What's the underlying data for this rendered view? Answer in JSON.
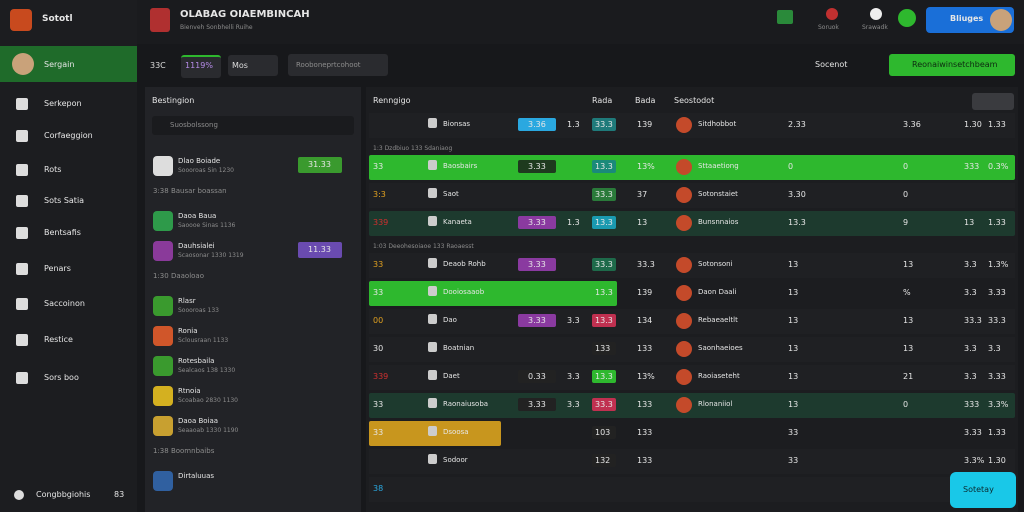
{
  "app": {
    "name": "Sototl",
    "user": "Sergain",
    "footer_label": "Congbbgiohis",
    "footer_badge": "83"
  },
  "menu": [
    "Serkepon",
    "Corfaeggion",
    "Rots",
    "Sots Satia",
    "Bentsafis",
    "Penars",
    "Saccoinon",
    "Restice",
    "Sors boo"
  ],
  "header": {
    "title": "OLABAG OIAEMBINCAH",
    "subtitle": "Bienveh Sonbhelli Ruihe",
    "actions": [
      "Soruok",
      "Srawadk"
    ],
    "account": "Bliuges"
  },
  "filters": {
    "tabs": [
      "33C",
      "1119%",
      "Mos"
    ],
    "search": "Rooboneprtcohoot",
    "right_search": "Socenot",
    "button": "Reonaiwinsetchbeam"
  },
  "left_panel": {
    "title": "Bestingion",
    "search": "Suosbolssong",
    "items": [
      {
        "name": "Dlao Boiade",
        "sub": "Soooroas Sin 1230",
        "value": "31.33",
        "value_color": "#3a9a2e",
        "icon": "#dddddd"
      },
      {
        "heading": "3:38 Bausar boassan"
      },
      {
        "name": "Daoa Baua",
        "sub": "Saoooe Sinas 1136",
        "icon": "#2e9a4a"
      },
      {
        "name": "Dauhsialei",
        "sub": "Scaosonar 1330 1319",
        "value": "11.33",
        "value_color": "#6a4bb0",
        "icon": "#8a3a9a"
      },
      {
        "heading": "1:30 Daaoloao"
      },
      {
        "name": "Rlasr",
        "sub": "Soooroas 133",
        "icon": "#3a9a2e"
      },
      {
        "name": "Ronia",
        "sub": "Sclousraan 1133",
        "icon": "#d0562a"
      },
      {
        "name": "Rotesbaila",
        "sub": "Sealcaos 138 1330",
        "icon": "#3a9a2e"
      },
      {
        "name": "Rtnoia",
        "sub": "Scoabao 2830 1130",
        "icon": "#d4b020"
      },
      {
        "name": "Daoa Boiaa",
        "sub": "Seaaoab 1330 1190",
        "icon": "#c8a030"
      },
      {
        "heading": "1:38 Boomnbaibs"
      },
      {
        "name": "Dirtaluuas",
        "sub": "",
        "icon": "#3060a0"
      }
    ]
  },
  "table": {
    "columns": [
      "Renngigo",
      "Rada",
      "Bada",
      "Seostodot"
    ],
    "rows": [
      {
        "lead": "",
        "team": "Bionsas",
        "odds": "3.36",
        "odds_color": "#2aa8e0",
        "mid": "1.3",
        "pct": "33.3",
        "pct_color": "#1f7a7a",
        "v1": "139",
        "team2": "Sitdhobbot",
        "v2": "2.33",
        "v3": "3.36",
        "v4": "1.30",
        "v5": "1.33"
      },
      {
        "sub": "1:3 Dzdbiuo 133 Sdaniaog"
      },
      {
        "lead": "33",
        "team": "Baosbairs",
        "odds": "3.33",
        "odds_color": "#1e3a1e",
        "mid": "",
        "pct": "13.3",
        "pct_color": "#1a8a7a",
        "v1": "13%",
        "team2": "Sttaaetiong",
        "v2": "0",
        "v3": "0",
        "v4": "333",
        "v5": "0.3%",
        "highlight": "#2eb82e",
        "span": "full"
      },
      {
        "lead": "3:3",
        "team": "Saot",
        "odds": "",
        "odds_color": "#222",
        "mid": "",
        "pct": "33.3",
        "pct_color": "#2a7a3a",
        "v1": "37",
        "team2": "Sotonstaiet",
        "v2": "3.30",
        "v3": "0",
        "v4": "",
        "v5": "",
        "lead_color": "#e0a020"
      },
      {
        "lead": "339",
        "team": "Kanaeta",
        "odds": "3.33",
        "odds_color": "#8a3aa0",
        "mid": "1.3",
        "pct": "13.3",
        "pct_color": "#1a9ab0",
        "v1": "13",
        "team2": "Bunsnnaios",
        "v2": "13.3",
        "v3": "9",
        "v4": "13",
        "v5": "1.33",
        "lead_color": "#d03030",
        "highlight": "#1d3a2e",
        "span": "full"
      },
      {
        "sub": "1:03 Deeohesoiaoe 133 Raoaesst"
      },
      {
        "lead": "33",
        "team": "Deaob Rohb",
        "odds": "3.33",
        "odds_color": "#8a3aa0",
        "mid": "",
        "pct": "33.3",
        "pct_color": "#1e6a4a",
        "v1": "33.3",
        "team2": "Sotonsoni",
        "v2": "13",
        "v3": "13",
        "v4": "3.3",
        "v5": "1.3%",
        "lead_color": "#e0a020"
      },
      {
        "lead": "33",
        "team": "Dooiosaaob",
        "odds": "",
        "odds_color": "#222",
        "mid": "",
        "pct": "13.3",
        "pct_color": "#2eb82e",
        "v1": "139",
        "team2": "Daon Daali",
        "v2": "13",
        "v3": "%",
        "v4": "3.3",
        "v5": "3.33",
        "highlight": "#2eb82e",
        "span": "half"
      },
      {
        "lead": "00",
        "team": "Dao",
        "odds": "3.33",
        "odds_color": "#8a3aa0",
        "mid": "3.3",
        "pct": "13.3",
        "pct_color": "#c03050",
        "v1": "134",
        "team2": "Rebaeaeltlt",
        "v2": "13",
        "v3": "13",
        "v4": "33.3",
        "v5": "33.3",
        "lead_color": "#e0a020"
      },
      {
        "lead": "30",
        "team": "Boatnian",
        "odds": "",
        "odds_color": "#222",
        "mid": "",
        "pct": "133",
        "pct_color": "#222",
        "v1": "133",
        "team2": "Saonhaeioes",
        "v2": "13",
        "v3": "13",
        "v4": "3.3",
        "v5": "3.3"
      },
      {
        "lead": "339",
        "team": "Daet",
        "odds": "0.33",
        "odds_color": "#222",
        "mid": "3.3",
        "pct": "13.3",
        "pct_color": "#2eb82e",
        "v1": "13%",
        "team2": "Raoiaseteht",
        "v2": "13",
        "v3": "21",
        "v4": "3.3",
        "v5": "3.33",
        "lead_color": "#d03030"
      },
      {
        "lead": "33",
        "team": "Raonaiusoba",
        "odds": "3.33",
        "odds_color": "#222",
        "mid": "3.3",
        "pct": "33.3",
        "pct_color": "#c03050",
        "v1": "133",
        "team2": "Rlonaniiol",
        "v2": "13",
        "v3": "0",
        "v4": "333",
        "v5": "3.3%",
        "highlight": "#1d3a2e",
        "span": "full"
      },
      {
        "lead": "33",
        "team": "Dsoosa",
        "odds": "",
        "odds_color": "#222",
        "mid": "",
        "pct": "103",
        "pct_color": "#222",
        "v1": "133",
        "team2": "",
        "v2": "33",
        "v3": "",
        "v4": "3.33",
        "v5": "1.33",
        "highlight": "#c8961e",
        "span": "short"
      },
      {
        "lead": "",
        "team": "Sodoor",
        "odds": "",
        "odds_color": "#222",
        "mid": "",
        "pct": "132",
        "pct_color": "#222",
        "v1": "133",
        "team2": "",
        "v2": "33",
        "v3": "",
        "v4": "3.3%",
        "v5": "1.30"
      },
      {
        "lead": "38",
        "team": "",
        "odds": "",
        "odds_color": "#222",
        "mid": "",
        "pct": "",
        "pct_color": "#222",
        "v1": "",
        "team2": "",
        "v2": "",
        "v3": "",
        "v4": "",
        "v5": "",
        "lead_color": "#2aa8e0"
      }
    ]
  },
  "help": "Sotetay"
}
